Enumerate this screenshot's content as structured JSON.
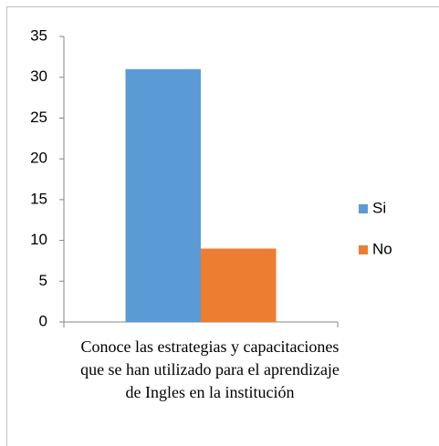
{
  "chart_data": {
    "type": "bar",
    "categories": [
      "Conoce las estrategias y capacitaciones que se han utilizado para el aprendizaje de Ingles en la institución"
    ],
    "series": [
      {
        "name": "Si",
        "color": "#5b9bd5",
        "values": [
          31
        ]
      },
      {
        "name": "No",
        "color": "#ed7d31",
        "values": [
          9
        ]
      }
    ],
    "ylim": [
      0,
      35
    ],
    "yticks": [
      0,
      5,
      10,
      15,
      20,
      25,
      30,
      35
    ],
    "grid": false,
    "legend": "right"
  }
}
